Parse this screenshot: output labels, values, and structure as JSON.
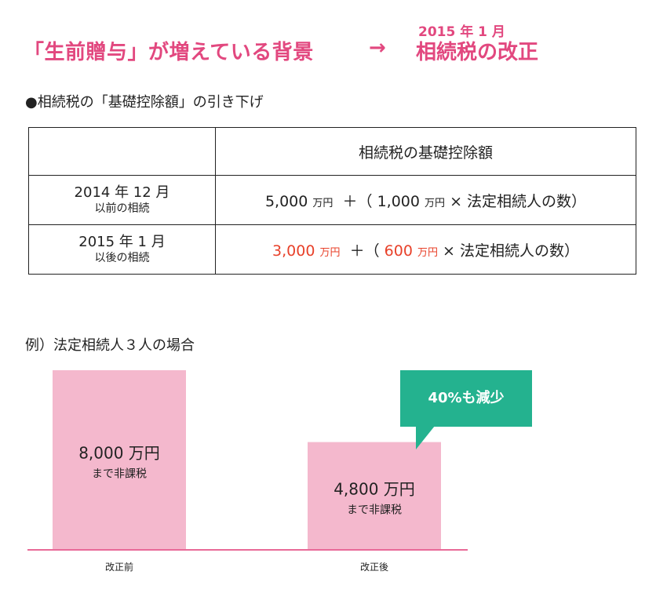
{
  "header": {
    "left_text": "「生前贈与」が増えている背景",
    "arrow": "→",
    "date": "2015 年 1 月",
    "right_title": "相続税の改正"
  },
  "section_heading": "●相続税の「基礎控除額」の引き下げ",
  "table": {
    "column_header": "相続税の基礎控除額",
    "rows": [
      {
        "period": "2014 年 12 月",
        "period_sub": "以前の相続",
        "base_amount": "5,000",
        "base_unit": "万円",
        "plus": "＋（",
        "per_heir_amount": "1,000",
        "per_heir_unit": "万円",
        "times_tail": "× 法定相続人の数）"
      },
      {
        "period": "2015 年 1 月",
        "period_sub": "以後の相続",
        "base_amount": "3,000",
        "base_unit": "万円",
        "plus": "＋（",
        "per_heir_amount": "600",
        "per_heir_unit": "万円",
        "times_tail": "× 法定相続人の数）"
      }
    ]
  },
  "example_heading": "例）法定相続人３人の場合",
  "callout_text": "40%も減少",
  "colors": {
    "accent_pink": "#e2487f",
    "bar_pink": "#f4b8cd",
    "baseline_pink": "#e86a98",
    "highlight_red": "#e8412a",
    "callout_green": "#24b28f"
  },
  "chart_data": {
    "type": "bar",
    "categories": [
      "改正前",
      "改正後"
    ],
    "values": [
      8000,
      4800
    ],
    "value_labels": [
      "8,000 万円",
      "4,800 万円"
    ],
    "value_sublabels": [
      "まで非課税",
      "まで非課税"
    ],
    "unit": "万円",
    "ylim": [
      0,
      8000
    ],
    "grid": false,
    "legend": "none"
  }
}
